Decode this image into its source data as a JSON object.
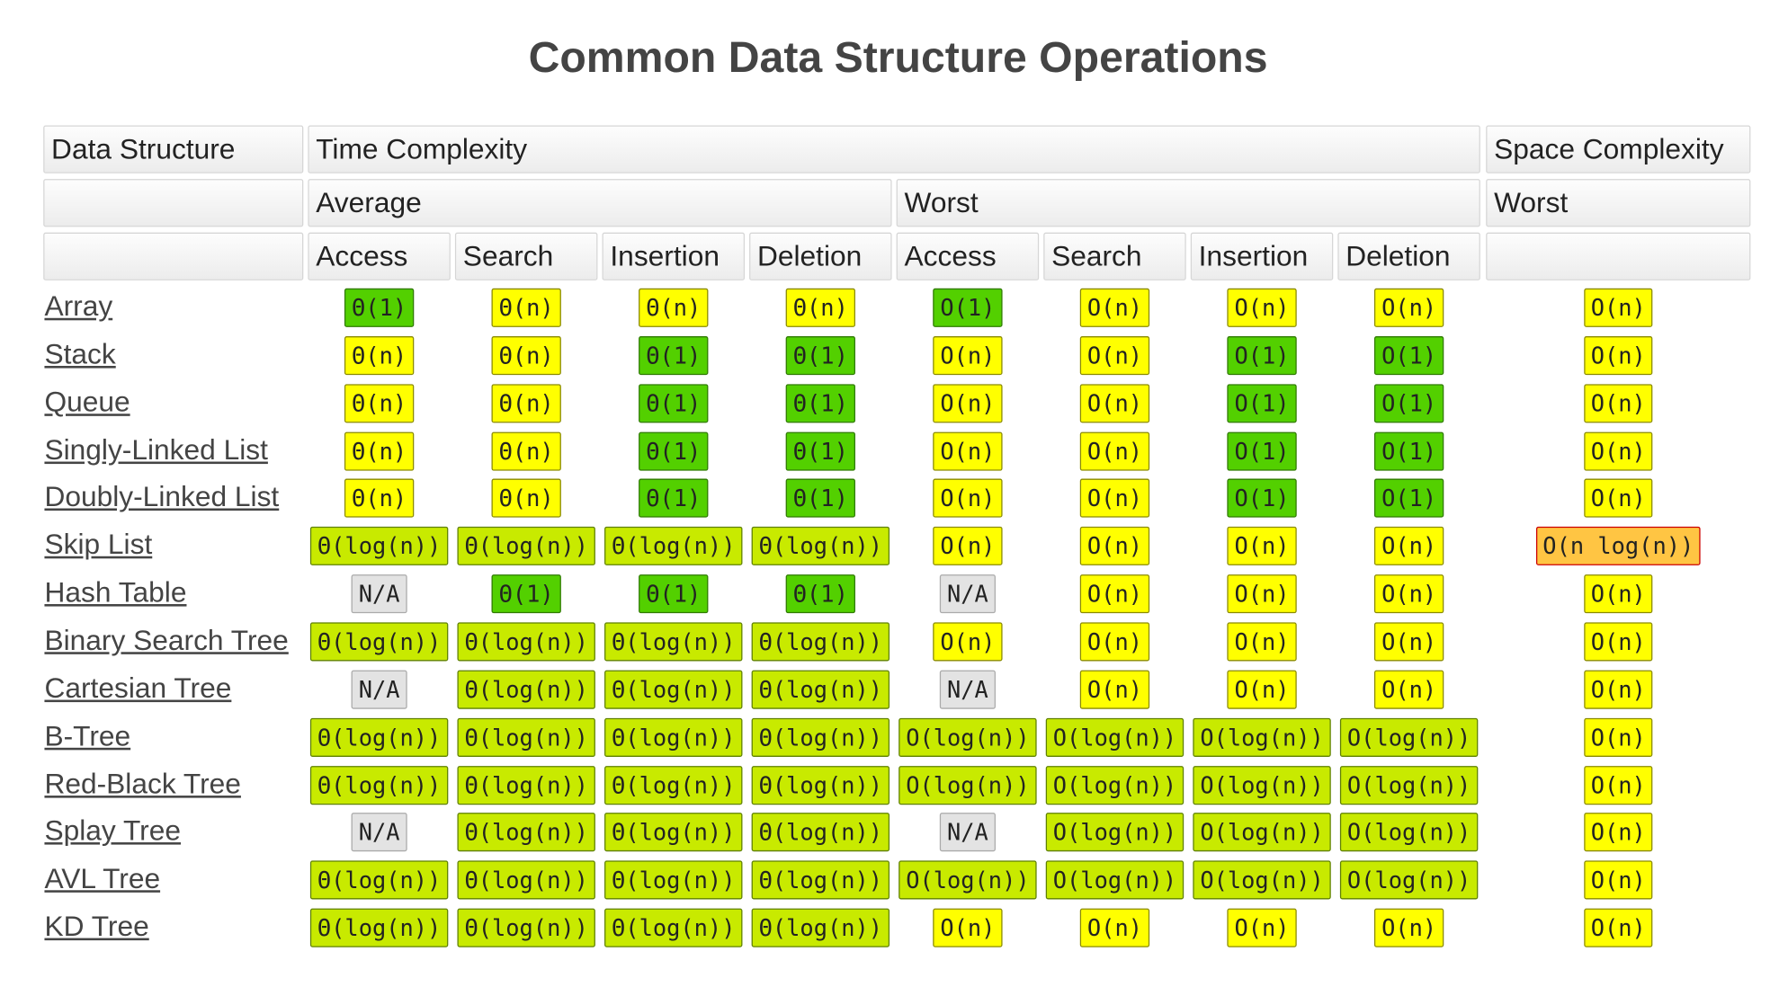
{
  "header": {
    "title": "Common Data Structure Operations"
  },
  "table": {
    "head": [
      [
        "Data Structure",
        "Time Complexity",
        "Space Complexity"
      ],
      [
        "Average",
        "Worst",
        "Worst"
      ],
      [
        "Access",
        "Search",
        "Insertion",
        "Deletion",
        "Access",
        "Search",
        "Insertion",
        "Deletion"
      ]
    ],
    "rows": [
      {
        "name": "Array",
        "cells": [
          [
            "Θ(1)",
            "#53d000",
            "#2f7a00"
          ],
          [
            "Θ(n)",
            "#ffff00",
            "#8a8a00"
          ],
          [
            "Θ(n)",
            "#ffff00",
            "#8a8a00"
          ],
          [
            "Θ(n)",
            "#ffff00",
            "#8a8a00"
          ],
          [
            "O(1)",
            "#53d000",
            "#2f7a00"
          ],
          [
            "O(n)",
            "#ffff00",
            "#8a8a00"
          ],
          [
            "O(n)",
            "#ffff00",
            "#8a8a00"
          ],
          [
            "O(n)",
            "#ffff00",
            "#8a8a00"
          ],
          [
            "O(n)",
            "#ffff00",
            "#8a8a00"
          ]
        ]
      },
      {
        "name": "Stack",
        "cells": [
          [
            "Θ(n)",
            "#ffff00",
            "#8a8a00"
          ],
          [
            "Θ(n)",
            "#ffff00",
            "#8a8a00"
          ],
          [
            "Θ(1)",
            "#53d000",
            "#2f7a00"
          ],
          [
            "Θ(1)",
            "#53d000",
            "#2f7a00"
          ],
          [
            "O(n)",
            "#ffff00",
            "#8a8a00"
          ],
          [
            "O(n)",
            "#ffff00",
            "#8a8a00"
          ],
          [
            "O(1)",
            "#53d000",
            "#2f7a00"
          ],
          [
            "O(1)",
            "#53d000",
            "#2f7a00"
          ],
          [
            "O(n)",
            "#ffff00",
            "#8a8a00"
          ]
        ]
      },
      {
        "name": "Queue",
        "cells": [
          [
            "Θ(n)",
            "#ffff00",
            "#8a8a00"
          ],
          [
            "Θ(n)",
            "#ffff00",
            "#8a8a00"
          ],
          [
            "Θ(1)",
            "#53d000",
            "#2f7a00"
          ],
          [
            "Θ(1)",
            "#53d000",
            "#2f7a00"
          ],
          [
            "O(n)",
            "#ffff00",
            "#8a8a00"
          ],
          [
            "O(n)",
            "#ffff00",
            "#8a8a00"
          ],
          [
            "O(1)",
            "#53d000",
            "#2f7a00"
          ],
          [
            "O(1)",
            "#53d000",
            "#2f7a00"
          ],
          [
            "O(n)",
            "#ffff00",
            "#8a8a00"
          ]
        ]
      },
      {
        "name": "Singly-Linked List",
        "cells": [
          [
            "Θ(n)",
            "#ffff00",
            "#8a8a00"
          ],
          [
            "Θ(n)",
            "#ffff00",
            "#8a8a00"
          ],
          [
            "Θ(1)",
            "#53d000",
            "#2f7a00"
          ],
          [
            "Θ(1)",
            "#53d000",
            "#2f7a00"
          ],
          [
            "O(n)",
            "#ffff00",
            "#8a8a00"
          ],
          [
            "O(n)",
            "#ffff00",
            "#8a8a00"
          ],
          [
            "O(1)",
            "#53d000",
            "#2f7a00"
          ],
          [
            "O(1)",
            "#53d000",
            "#2f7a00"
          ],
          [
            "O(n)",
            "#ffff00",
            "#8a8a00"
          ]
        ]
      },
      {
        "name": "Doubly-Linked List",
        "cells": [
          [
            "Θ(n)",
            "#ffff00",
            "#8a8a00"
          ],
          [
            "Θ(n)",
            "#ffff00",
            "#8a8a00"
          ],
          [
            "Θ(1)",
            "#53d000",
            "#2f7a00"
          ],
          [
            "Θ(1)",
            "#53d000",
            "#2f7a00"
          ],
          [
            "O(n)",
            "#ffff00",
            "#8a8a00"
          ],
          [
            "O(n)",
            "#ffff00",
            "#8a8a00"
          ],
          [
            "O(1)",
            "#53d000",
            "#2f7a00"
          ],
          [
            "O(1)",
            "#53d000",
            "#2f7a00"
          ],
          [
            "O(n)",
            "#ffff00",
            "#8a8a00"
          ]
        ]
      },
      {
        "name": "Skip List",
        "cells": [
          [
            "Θ(log(n))",
            "#c8ea00",
            "#5f8000"
          ],
          [
            "Θ(log(n))",
            "#c8ea00",
            "#5f8000"
          ],
          [
            "Θ(log(n))",
            "#c8ea00",
            "#5f8000"
          ],
          [
            "Θ(log(n))",
            "#c8ea00",
            "#5f8000"
          ],
          [
            "O(n)",
            "#ffff00",
            "#8a8a00"
          ],
          [
            "O(n)",
            "#ffff00",
            "#8a8a00"
          ],
          [
            "O(n)",
            "#ffff00",
            "#8a8a00"
          ],
          [
            "O(n)",
            "#ffff00",
            "#8a8a00"
          ],
          [
            "O(n log(n))",
            "#ffc543",
            "#cc0000"
          ]
        ]
      },
      {
        "name": "Hash Table",
        "cells": [
          [
            "N/A",
            "#e3e3e3",
            "#aaaaaa"
          ],
          [
            "Θ(1)",
            "#53d000",
            "#2f7a00"
          ],
          [
            "Θ(1)",
            "#53d000",
            "#2f7a00"
          ],
          [
            "Θ(1)",
            "#53d000",
            "#2f7a00"
          ],
          [
            "N/A",
            "#e3e3e3",
            "#aaaaaa"
          ],
          [
            "O(n)",
            "#ffff00",
            "#8a8a00"
          ],
          [
            "O(n)",
            "#ffff00",
            "#8a8a00"
          ],
          [
            "O(n)",
            "#ffff00",
            "#8a8a00"
          ],
          [
            "O(n)",
            "#ffff00",
            "#8a8a00"
          ]
        ]
      },
      {
        "name": "Binary Search Tree",
        "cells": [
          [
            "Θ(log(n))",
            "#c8ea00",
            "#5f8000"
          ],
          [
            "Θ(log(n))",
            "#c8ea00",
            "#5f8000"
          ],
          [
            "Θ(log(n))",
            "#c8ea00",
            "#5f8000"
          ],
          [
            "Θ(log(n))",
            "#c8ea00",
            "#5f8000"
          ],
          [
            "O(n)",
            "#ffff00",
            "#8a8a00"
          ],
          [
            "O(n)",
            "#ffff00",
            "#8a8a00"
          ],
          [
            "O(n)",
            "#ffff00",
            "#8a8a00"
          ],
          [
            "O(n)",
            "#ffff00",
            "#8a8a00"
          ],
          [
            "O(n)",
            "#ffff00",
            "#8a8a00"
          ]
        ]
      },
      {
        "name": "Cartesian Tree",
        "cells": [
          [
            "N/A",
            "#e3e3e3",
            "#aaaaaa"
          ],
          [
            "Θ(log(n))",
            "#c8ea00",
            "#5f8000"
          ],
          [
            "Θ(log(n))",
            "#c8ea00",
            "#5f8000"
          ],
          [
            "Θ(log(n))",
            "#c8ea00",
            "#5f8000"
          ],
          [
            "N/A",
            "#e3e3e3",
            "#aaaaaa"
          ],
          [
            "O(n)",
            "#ffff00",
            "#8a8a00"
          ],
          [
            "O(n)",
            "#ffff00",
            "#8a8a00"
          ],
          [
            "O(n)",
            "#ffff00",
            "#8a8a00"
          ],
          [
            "O(n)",
            "#ffff00",
            "#8a8a00"
          ]
        ]
      },
      {
        "name": "B-Tree",
        "cells": [
          [
            "Θ(log(n))",
            "#c8ea00",
            "#5f8000"
          ],
          [
            "Θ(log(n))",
            "#c8ea00",
            "#5f8000"
          ],
          [
            "Θ(log(n))",
            "#c8ea00",
            "#5f8000"
          ],
          [
            "Θ(log(n))",
            "#c8ea00",
            "#5f8000"
          ],
          [
            "O(log(n))",
            "#c8ea00",
            "#5f8000"
          ],
          [
            "O(log(n))",
            "#c8ea00",
            "#5f8000"
          ],
          [
            "O(log(n))",
            "#c8ea00",
            "#5f8000"
          ],
          [
            "O(log(n))",
            "#c8ea00",
            "#5f8000"
          ],
          [
            "O(n)",
            "#ffff00",
            "#8a8a00"
          ]
        ]
      },
      {
        "name": "Red-Black Tree",
        "cells": [
          [
            "Θ(log(n))",
            "#c8ea00",
            "#5f8000"
          ],
          [
            "Θ(log(n))",
            "#c8ea00",
            "#5f8000"
          ],
          [
            "Θ(log(n))",
            "#c8ea00",
            "#5f8000"
          ],
          [
            "Θ(log(n))",
            "#c8ea00",
            "#5f8000"
          ],
          [
            "O(log(n))",
            "#c8ea00",
            "#5f8000"
          ],
          [
            "O(log(n))",
            "#c8ea00",
            "#5f8000"
          ],
          [
            "O(log(n))",
            "#c8ea00",
            "#5f8000"
          ],
          [
            "O(log(n))",
            "#c8ea00",
            "#5f8000"
          ],
          [
            "O(n)",
            "#ffff00",
            "#8a8a00"
          ]
        ]
      },
      {
        "name": "Splay Tree",
        "cells": [
          [
            "N/A",
            "#e3e3e3",
            "#aaaaaa"
          ],
          [
            "Θ(log(n))",
            "#c8ea00",
            "#5f8000"
          ],
          [
            "Θ(log(n))",
            "#c8ea00",
            "#5f8000"
          ],
          [
            "Θ(log(n))",
            "#c8ea00",
            "#5f8000"
          ],
          [
            "N/A",
            "#e3e3e3",
            "#aaaaaa"
          ],
          [
            "O(log(n))",
            "#c8ea00",
            "#5f8000"
          ],
          [
            "O(log(n))",
            "#c8ea00",
            "#5f8000"
          ],
          [
            "O(log(n))",
            "#c8ea00",
            "#5f8000"
          ],
          [
            "O(n)",
            "#ffff00",
            "#8a8a00"
          ]
        ]
      },
      {
        "name": "AVL Tree",
        "cells": [
          [
            "Θ(log(n))",
            "#c8ea00",
            "#5f8000"
          ],
          [
            "Θ(log(n))",
            "#c8ea00",
            "#5f8000"
          ],
          [
            "Θ(log(n))",
            "#c8ea00",
            "#5f8000"
          ],
          [
            "Θ(log(n))",
            "#c8ea00",
            "#5f8000"
          ],
          [
            "O(log(n))",
            "#c8ea00",
            "#5f8000"
          ],
          [
            "O(log(n))",
            "#c8ea00",
            "#5f8000"
          ],
          [
            "O(log(n))",
            "#c8ea00",
            "#5f8000"
          ],
          [
            "O(log(n))",
            "#c8ea00",
            "#5f8000"
          ],
          [
            "O(n)",
            "#ffff00",
            "#8a8a00"
          ]
        ]
      },
      {
        "name": "KD Tree",
        "cells": [
          [
            "Θ(log(n))",
            "#c8ea00",
            "#5f8000"
          ],
          [
            "Θ(log(n))",
            "#c8ea00",
            "#5f8000"
          ],
          [
            "Θ(log(n))",
            "#c8ea00",
            "#5f8000"
          ],
          [
            "Θ(log(n))",
            "#c8ea00",
            "#5f8000"
          ],
          [
            "O(n)",
            "#ffff00",
            "#8a8a00"
          ],
          [
            "O(n)",
            "#ffff00",
            "#8a8a00"
          ],
          [
            "O(n)",
            "#ffff00",
            "#8a8a00"
          ],
          [
            "O(n)",
            "#ffff00",
            "#8a8a00"
          ],
          [
            "O(n)",
            "#ffff00",
            "#8a8a00"
          ]
        ]
      }
    ]
  }
}
